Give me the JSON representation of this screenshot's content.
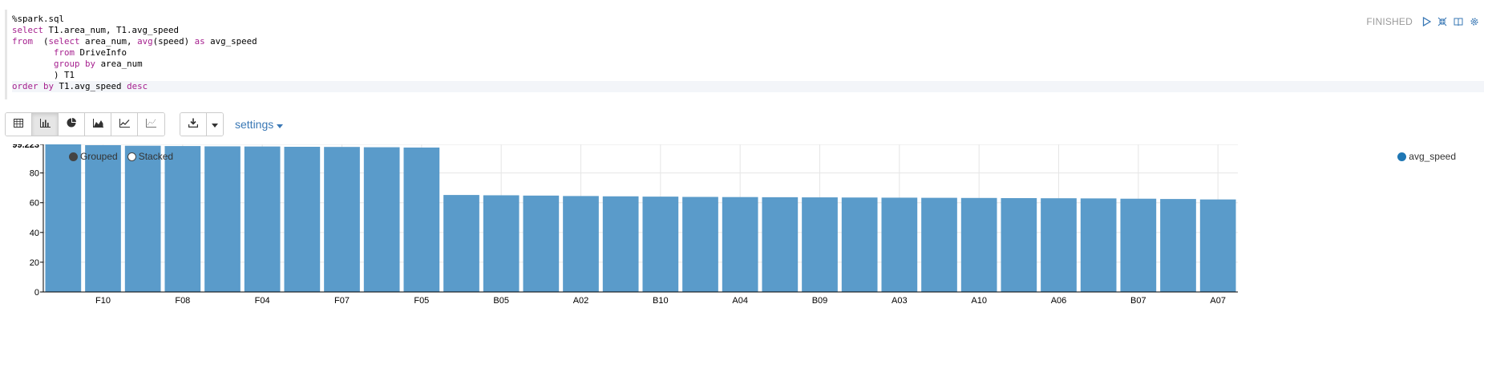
{
  "editor": {
    "lines": [
      [
        {
          "t": "%spark.sql",
          "kw": false
        }
      ],
      [
        {
          "t": "select",
          "kw": true
        },
        {
          "t": " T1.area_num, T1.avg_speed",
          "kw": false
        }
      ],
      [
        {
          "t": "from",
          "kw": true
        },
        {
          "t": "  (",
          "kw": false
        },
        {
          "t": "select",
          "kw": true
        },
        {
          "t": " area_num, ",
          "kw": false
        },
        {
          "t": "avg",
          "kw": true
        },
        {
          "t": "(speed) ",
          "kw": false
        },
        {
          "t": "as",
          "kw": true
        },
        {
          "t": " avg_speed",
          "kw": false
        }
      ],
      [
        {
          "t": "        ",
          "kw": false
        },
        {
          "t": "from",
          "kw": true
        },
        {
          "t": " DriveInfo",
          "kw": false
        }
      ],
      [
        {
          "t": "        ",
          "kw": false
        },
        {
          "t": "group",
          "kw": true
        },
        {
          "t": " ",
          "kw": false
        },
        {
          "t": "by",
          "kw": true
        },
        {
          "t": " area_num",
          "kw": false
        }
      ],
      [
        {
          "t": "        ) T1",
          "kw": false
        }
      ],
      [
        {
          "t": "order",
          "kw": true
        },
        {
          "t": " ",
          "kw": false
        },
        {
          "t": "by",
          "kw": true
        },
        {
          "t": " T1.avg_speed ",
          "kw": false
        },
        {
          "t": "desc",
          "kw": true
        }
      ]
    ]
  },
  "status": {
    "text": "FINISHED"
  },
  "toolbar": {
    "settings_label": "settings"
  },
  "legend": {
    "grouped": "Grouped",
    "stacked": "Stacked",
    "series_name": "avg_speed"
  },
  "colors": {
    "bar": "#5a9bca",
    "accent": "#3a78b5",
    "legend_dot": "#1f77b4"
  },
  "chart_data": {
    "type": "bar",
    "categories": [
      "",
      "F10",
      "",
      "F08",
      "",
      "F04",
      "",
      "F07",
      "",
      "F05",
      "",
      "B05",
      "",
      "A02",
      "",
      "B10",
      "",
      "A04",
      "",
      "B09",
      "",
      "A03",
      "",
      "A10",
      "",
      "A06",
      "",
      "B07",
      "",
      "A07"
    ],
    "series": [
      {
        "name": "avg_speed",
        "values": [
          99.223,
          98.7,
          98.3,
          98.1,
          97.9,
          97.8,
          97.6,
          97.5,
          97.3,
          97.1,
          65.2,
          65.0,
          64.8,
          64.5,
          64.3,
          64.1,
          63.9,
          63.8,
          63.7,
          63.6,
          63.5,
          63.4,
          63.3,
          63.2,
          63.1,
          63.0,
          62.9,
          62.7,
          62.5,
          62.2
        ]
      }
    ],
    "xlabel": "",
    "ylabel": "",
    "ylim": [
      0,
      99.223
    ],
    "yticks": [
      "0",
      "20",
      "40",
      "60",
      "80",
      "99.223"
    ],
    "ytick_values": [
      0,
      20,
      40,
      60,
      80,
      99.223
    ],
    "grid": true,
    "legend": "top-right"
  }
}
